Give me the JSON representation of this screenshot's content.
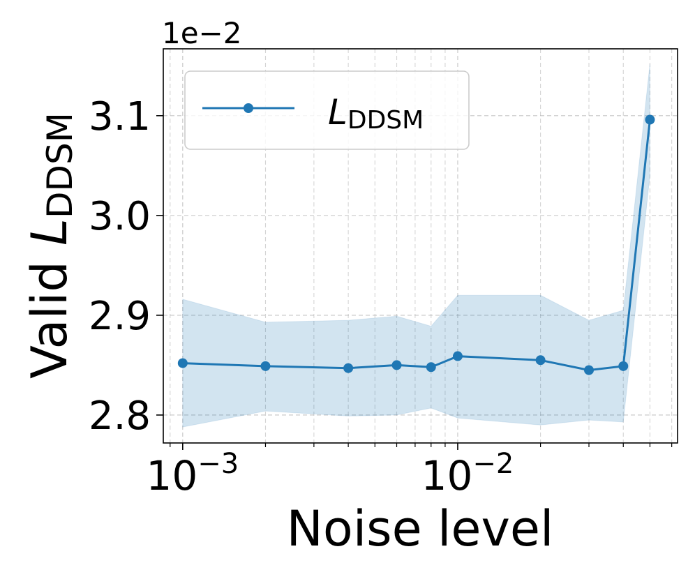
{
  "chart_data": {
    "type": "line",
    "title": "",
    "xlabel": "Noise level",
    "ylabel_prefix": "Valid ",
    "ylabel_symbol": "L",
    "ylabel_subscript": "DDSM",
    "xscale": "log",
    "xlim": [
      0.00085,
      0.063
    ],
    "ylim": [
      0.02772,
      0.03167
    ],
    "y_offset_text": "1e−2",
    "x_ticks": [
      {
        "value": 0.001,
        "base": "10",
        "exp": "−3"
      },
      {
        "value": 0.01,
        "base": "10",
        "exp": "−2"
      }
    ],
    "y_ticks": [
      {
        "value": 0.028,
        "label": "2.8"
      },
      {
        "value": 0.029,
        "label": "2.9"
      },
      {
        "value": 0.03,
        "label": "3.0"
      },
      {
        "value": 0.031,
        "label": "3.1"
      }
    ],
    "grid": true,
    "legend": {
      "position": "top-left",
      "symbol": "L",
      "subscript": "DDSM"
    },
    "series": [
      {
        "name": "L_DDSM",
        "color": "#1f77b4",
        "band_color": "#1f77b4",
        "x": [
          0.001,
          0.002,
          0.004,
          0.006,
          0.008,
          0.01,
          0.02,
          0.03,
          0.04,
          0.05
        ],
        "y": [
          0.02852,
          0.02849,
          0.02847,
          0.0285,
          0.02848,
          0.02859,
          0.02855,
          0.02845,
          0.02849,
          0.03096
        ],
        "lower": [
          0.02788,
          0.02804,
          0.02799,
          0.028,
          0.02807,
          0.02797,
          0.0279,
          0.02795,
          0.02793,
          0.0304
        ],
        "upper": [
          0.02916,
          0.02893,
          0.02895,
          0.02899,
          0.02889,
          0.0292,
          0.0292,
          0.02895,
          0.02905,
          0.03152
        ]
      }
    ]
  }
}
